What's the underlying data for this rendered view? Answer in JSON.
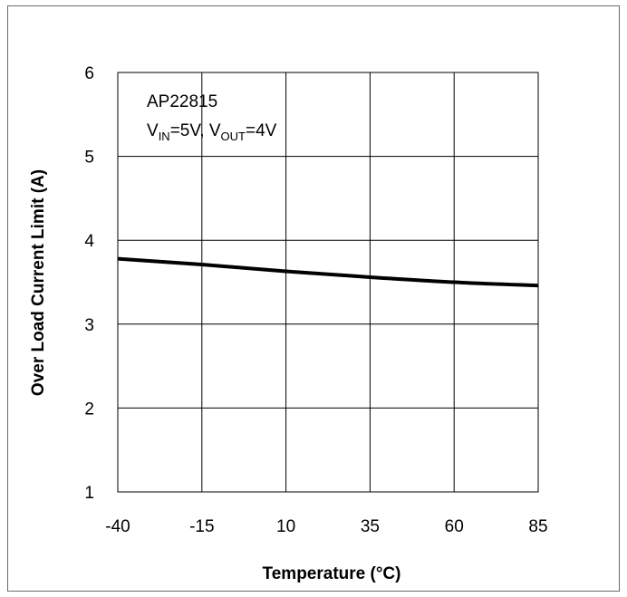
{
  "chart_data": {
    "type": "line",
    "xlabel": "Temperature (°C)",
    "ylabel": "Over Load Current Limit (A)",
    "xlim": [
      -40,
      85
    ],
    "ylim": [
      1,
      6
    ],
    "xticks": [
      "-40",
      "-15",
      "10",
      "35",
      "60",
      "85"
    ],
    "yticks": [
      "1",
      "2",
      "3",
      "4",
      "5",
      "6"
    ],
    "grid": true,
    "annotation": {
      "device": "AP22815",
      "vin_prefix": "V",
      "vin_sub": "IN",
      "vin_value": "=5V, ",
      "vout_prefix": "V",
      "vout_sub": "OUT",
      "vout_value": "=4V"
    },
    "series": [
      {
        "color": "#000000",
        "x": [
          -40,
          -15,
          10,
          35,
          60,
          85
        ],
        "y": [
          3.78,
          3.71,
          3.63,
          3.56,
          3.5,
          3.46
        ]
      }
    ]
  }
}
